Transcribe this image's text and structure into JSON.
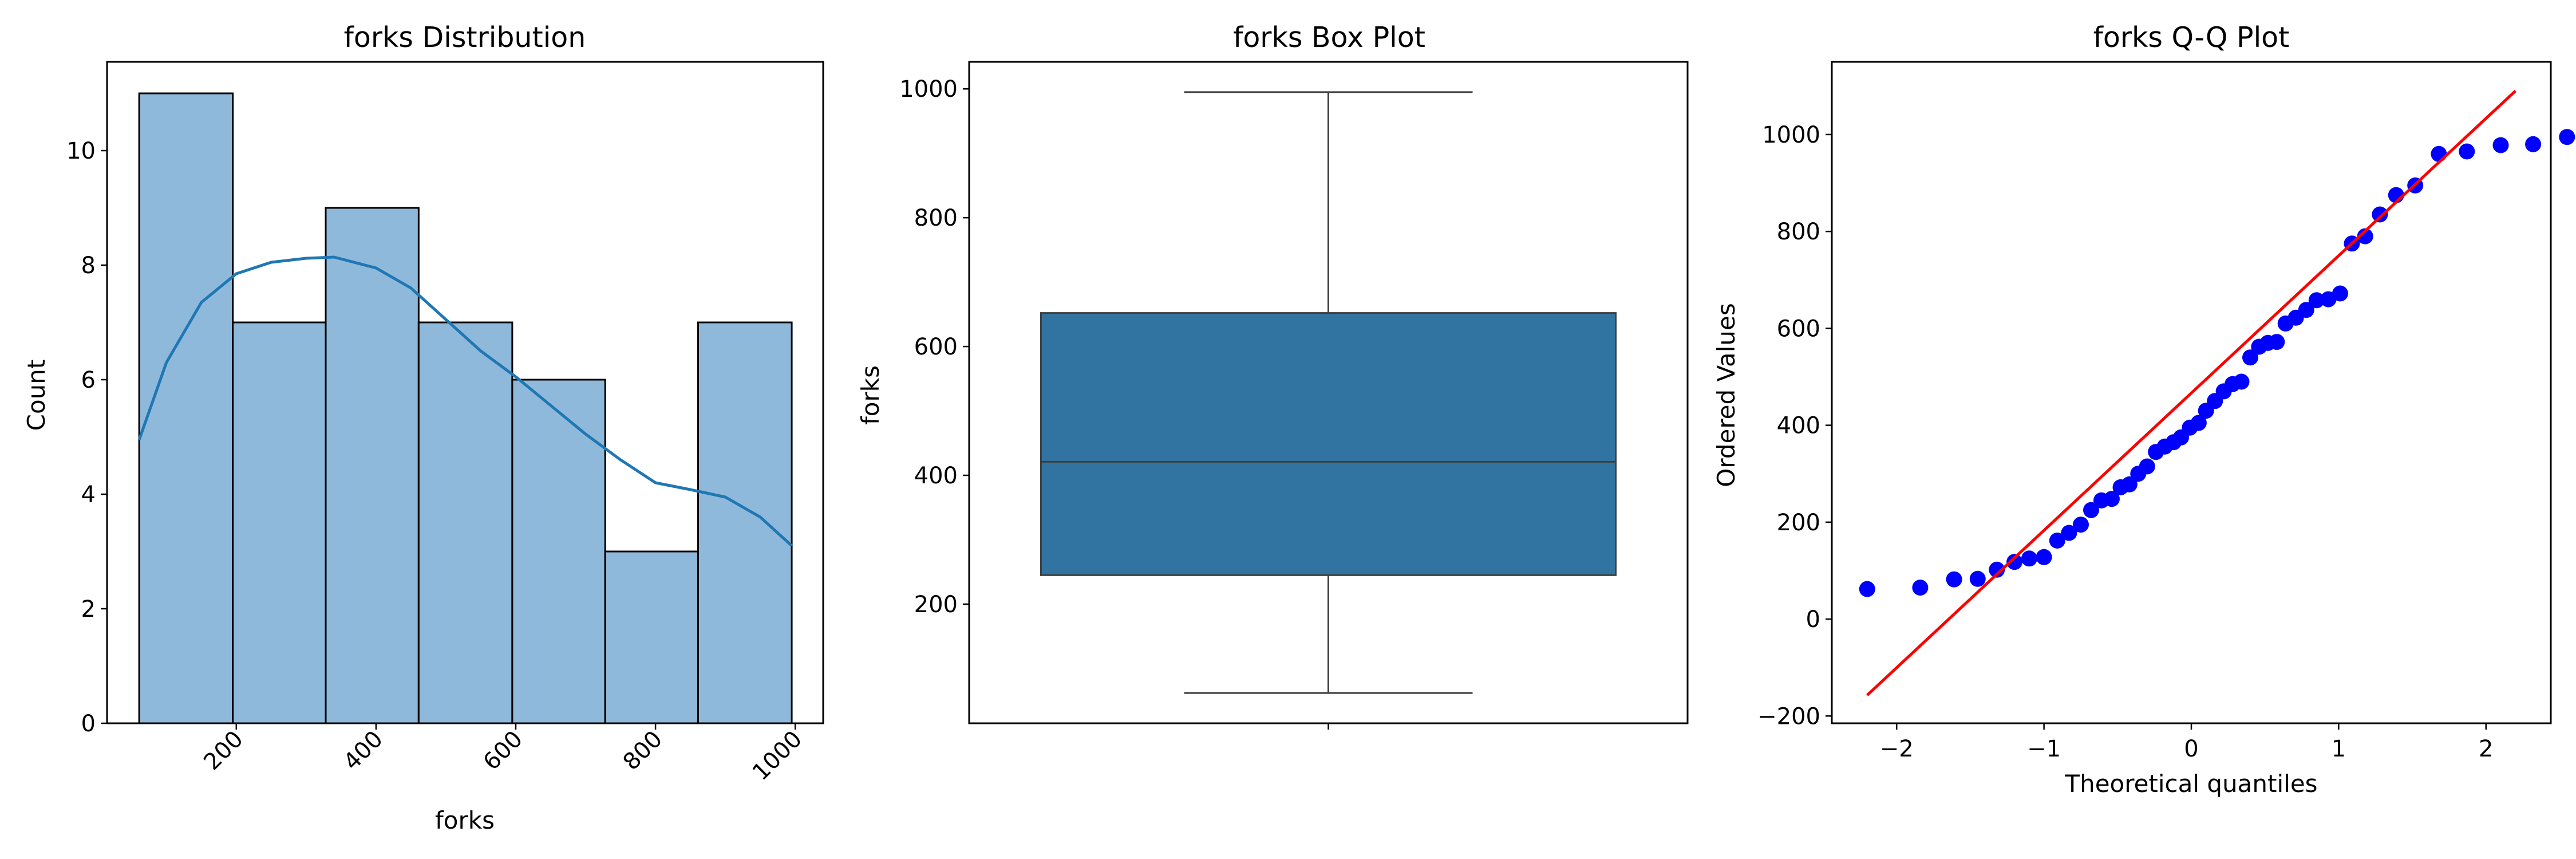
{
  "chart_data": [
    {
      "type": "histogram",
      "title": "forks Distribution",
      "xlabel": "forks",
      "ylabel": "Count",
      "bin_edges": [
        61,
        195,
        328,
        461,
        595,
        728,
        861,
        995
      ],
      "counts": [
        11,
        7,
        9,
        7,
        6,
        3,
        7
      ],
      "kde_x": [
        61,
        100,
        150,
        200,
        250,
        300,
        340,
        400,
        450,
        500,
        550,
        600,
        650,
        700,
        750,
        800,
        850,
        900,
        950,
        995
      ],
      "kde_y": [
        4.95,
        6.3,
        7.35,
        7.85,
        8.05,
        8.12,
        8.14,
        7.95,
        7.6,
        7.05,
        6.5,
        6.05,
        5.55,
        5.05,
        4.6,
        4.2,
        4.08,
        3.95,
        3.6,
        3.1
      ],
      "xlim": [
        15,
        1040
      ],
      "ylim": [
        0,
        11.55
      ],
      "xticks": [
        200,
        400,
        600,
        800,
        1000
      ],
      "yticks": [
        0,
        2,
        4,
        6,
        8,
        10
      ],
      "bar_color": "#8fb9da",
      "line_color": "#1f77b4"
    },
    {
      "type": "box",
      "title": "forks Box Plot",
      "xlabel": "",
      "ylabel": "forks",
      "whisker_low": 62,
      "q1": 245,
      "median": 421,
      "q3": 652,
      "whisker_high": 995,
      "ylim": [
        15,
        1042
      ],
      "yticks": [
        200,
        400,
        600,
        800,
        1000
      ],
      "box_color": "#3274a1"
    },
    {
      "type": "scatter",
      "title": "forks Q-Q Plot",
      "xlabel": "Theoretical quantiles",
      "ylabel": "Ordered Values",
      "points": [
        [
          -2.2,
          62
        ],
        [
          -1.84,
          65
        ],
        [
          -1.61,
          82
        ],
        [
          -1.45,
          83
        ],
        [
          -1.32,
          102
        ],
        [
          -1.2,
          118
        ],
        [
          -1.1,
          125
        ],
        [
          -1.0,
          128
        ],
        [
          -0.91,
          162
        ],
        [
          -0.83,
          178
        ],
        [
          -0.75,
          195
        ],
        [
          -0.68,
          225
        ],
        [
          -0.61,
          245
        ],
        [
          -0.54,
          248
        ],
        [
          -0.48,
          272
        ],
        [
          -0.42,
          278
        ],
        [
          -0.36,
          300
        ],
        [
          -0.3,
          315
        ],
        [
          -0.24,
          345
        ],
        [
          -0.18,
          356
        ],
        [
          -0.12,
          365
        ],
        [
          -0.07,
          375
        ],
        [
          -0.01,
          395
        ],
        [
          0.05,
          405
        ],
        [
          0.1,
          430
        ],
        [
          0.16,
          450
        ],
        [
          0.22,
          470
        ],
        [
          0.28,
          485
        ],
        [
          0.34,
          490
        ],
        [
          0.4,
          540
        ],
        [
          0.46,
          562
        ],
        [
          0.52,
          570
        ],
        [
          0.58,
          572
        ],
        [
          0.64,
          610
        ],
        [
          0.71,
          622
        ],
        [
          0.78,
          638
        ],
        [
          0.85,
          658
        ],
        [
          0.93,
          660
        ],
        [
          1.01,
          672
        ],
        [
          1.09,
          775
        ],
        [
          1.18,
          790
        ],
        [
          1.28,
          835
        ],
        [
          1.39,
          875
        ],
        [
          1.52,
          895
        ],
        [
          1.68,
          960
        ],
        [
          1.87,
          965
        ],
        [
          2.1,
          978
        ],
        [
          2.32,
          980
        ],
        [
          2.55,
          995
        ]
      ],
      "fit_line": {
        "x": [
          -2.2,
          2.2
        ],
        "y": [
          -157,
          1090
        ]
      },
      "xlim": [
        -2.44,
        2.44
      ],
      "ylim": [
        -215,
        1150
      ],
      "xticks": [
        -2,
        -1,
        0,
        1,
        2
      ],
      "yticks": [
        -200,
        0,
        200,
        400,
        600,
        800,
        1000
      ],
      "xtick_labels": [
        "−2",
        "−1",
        "0",
        "1",
        "2"
      ],
      "ytick_labels": [
        "−200",
        "0",
        "200",
        "400",
        "600",
        "800",
        "1000"
      ],
      "point_color": "#0000ff",
      "line_color": "#ff0000"
    }
  ]
}
